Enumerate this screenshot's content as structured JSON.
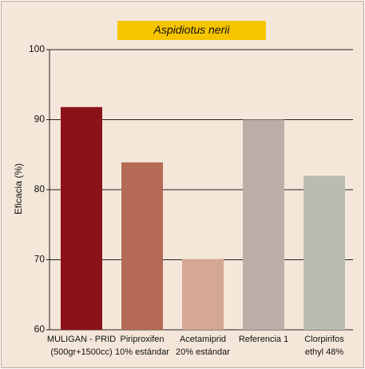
{
  "chart_data": {
    "type": "bar",
    "title": "Aspidiotus nerii",
    "y_label": "Eficacia (%)",
    "categories": [
      [
        "MULIGAN - PRID",
        "(500gr+1500cc)"
      ],
      [
        "Piriproxifen",
        "10% estándar"
      ],
      [
        "Acetamiprid",
        "20% estándar"
      ],
      [
        "Referencia 1"
      ],
      [
        "Clorpirifos",
        "ethyl 48%"
      ]
    ],
    "values": [
      91.8,
      83.9,
      70.1,
      90,
      82
    ],
    "colors": [
      "#8c1219",
      "#b46a54",
      "#d5a893",
      "#bcaea7",
      "#b9bdb1"
    ],
    "ylim": [
      60,
      100
    ],
    "yticks": [
      60,
      70,
      80,
      90,
      100
    ],
    "grid": true
  }
}
